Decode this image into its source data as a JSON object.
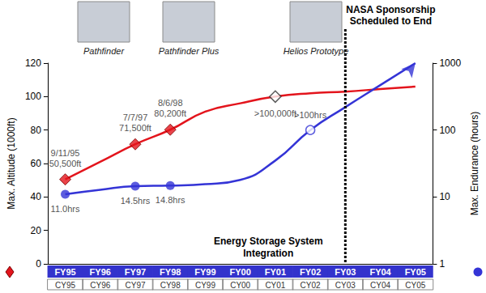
{
  "chart_data": {
    "type": "line",
    "categories": [
      "FY95",
      "FY96",
      "FY97",
      "FY98",
      "FY99",
      "FY00",
      "FY01",
      "FY02",
      "FY03",
      "FY04",
      "FY05"
    ],
    "categories2": [
      "CY95",
      "CY96",
      "CY97",
      "CY98",
      "CY99",
      "CY00",
      "CY01",
      "CY02",
      "CY03",
      "CY04",
      "CY05"
    ],
    "ylim": [
      0,
      120
    ],
    "yticks": [
      0,
      20,
      40,
      60,
      80,
      100,
      120
    ],
    "y2lim": [
      1,
      1000
    ],
    "y2ticks": [
      1,
      10,
      100,
      1000
    ],
    "log": "y2",
    "grid": false,
    "series": [
      {
        "name": "Max. Altitude (1000ft)",
        "color": "#e3141c",
        "marker": "diamond",
        "line_style": "solid",
        "values": [
          50.5,
          61,
          71.5,
          80.2,
          91,
          96,
          100,
          102,
          103,
          104.5,
          106
        ]
      },
      {
        "name": "Max. Endurance (hours)",
        "color": "#3434d6",
        "marker": "circle",
        "line_style": "arrow",
        "axis": "y2",
        "values": [
          11.0,
          12.8,
          14.5,
          14.8,
          15.5,
          18,
          35,
          100,
          220,
          470,
          1000
        ]
      }
    ],
    "annotations": [
      {
        "text": "9/11/95\n50,500ft",
        "series": 0,
        "category": "FY95"
      },
      {
        "text": "7/7/97\n71,500ft",
        "series": 0,
        "category": "FY97"
      },
      {
        "text": "8/6/98\n80,200ft",
        "series": 0,
        "category": "FY98"
      },
      {
        "text": ">100,000ft",
        "series": 0,
        "category": "FY01",
        "marker": "hollow"
      },
      {
        "text": "11.0hrs",
        "series": 1,
        "category": "FY95"
      },
      {
        "text": "14.5hrs",
        "series": 1,
        "category": "FY97"
      },
      {
        "text": "14.8hrs",
        "series": 1,
        "category": "FY98"
      },
      {
        "text": ">100hrs",
        "series": 1,
        "category": "FY02",
        "marker": "hollow"
      }
    ],
    "vertical_line": {
      "text": "NASA Sponsorship\nScheduled to End",
      "category": "FY03"
    },
    "notes": [
      "Energy Storage System\nIntegration"
    ],
    "images": [
      "Pathfinder",
      "Pathfinder Plus",
      "Helios Prototype"
    ]
  }
}
